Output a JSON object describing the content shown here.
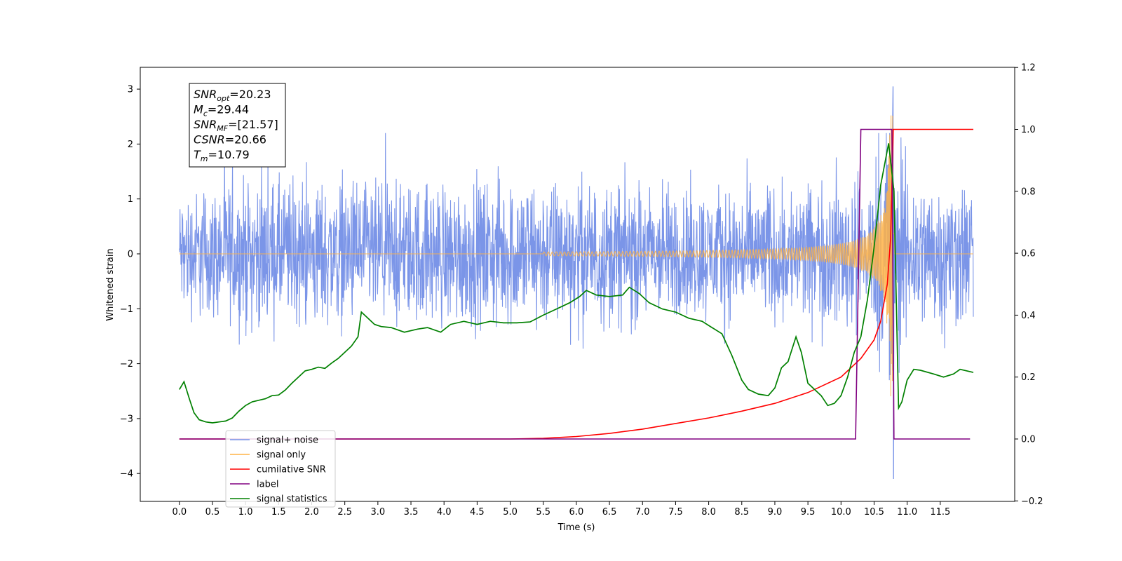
{
  "chart_data": {
    "type": "line",
    "xlabel": "Time (s)",
    "ylabel": "Whitened strain",
    "xlim": [
      -0.5,
      12.4
    ],
    "ylim": [
      -4.45,
      3.4
    ],
    "ylim_right": [
      -0.2,
      1.2
    ],
    "x_ticks": [
      "0.0",
      "0.5",
      "1.0",
      "1.5",
      "2.0",
      "2.5",
      "3.0",
      "3.5",
      "4.0",
      "4.5",
      "5.0",
      "5.5",
      "6.0",
      "6.5",
      "7.0",
      "7.5",
      "8.0",
      "8.5",
      "9.0",
      "9.5",
      "10.0",
      "10.5",
      "11.0",
      "11.5"
    ],
    "y_ticks_left": [
      "3",
      "2",
      "1",
      "0",
      "−1",
      "−2",
      "−3",
      "−4"
    ],
    "y_ticks_right": [
      "1.2",
      "1.0",
      "0.8",
      "0.6",
      "0.4",
      "0.2",
      "0.0",
      "−0.2"
    ],
    "legend_position": "lower-left",
    "annotation": {
      "lines": [
        {
          "var": "SNR",
          "sub": "opt",
          "value": "=20.23"
        },
        {
          "var": "M",
          "sub": "c",
          "value": "=29.44"
        },
        {
          "var": "SNR",
          "sub": "MF",
          "value": "=[21.57]"
        },
        {
          "var": "CSNR",
          "sub": "",
          "value": "=20.66"
        },
        {
          "var": "T",
          "sub": "m",
          "value": "=10.79"
        }
      ]
    },
    "series": [
      {
        "name": "signal+ noise",
        "color": "#7893e8",
        "axis": "left",
        "x_range": [
          0.0,
          12.0
        ],
        "envelope_points": [
          [
            0.0,
            1.0
          ],
          [
            0.6,
            1.1
          ],
          [
            1.0,
            1.2
          ],
          [
            2.0,
            1.2
          ],
          [
            3.0,
            1.15
          ],
          [
            5.5,
            1.25
          ],
          [
            8.0,
            1.1
          ],
          [
            9.5,
            1.15
          ],
          [
            10.5,
            1.3
          ],
          [
            10.8,
            3.05
          ],
          [
            11.0,
            1.3
          ],
          [
            12.0,
            1.2
          ]
        ],
        "peak_max": 3.05,
        "peak_min": -4.1,
        "peak_time": 10.79
      },
      {
        "name": "signal only",
        "color": "#ffb347",
        "axis": "left",
        "x_range": [
          0.0,
          12.0
        ],
        "chirp_start": 5.5,
        "merger_time": 10.79,
        "peak_amplitude": 2.65
      },
      {
        "name": "cumilative SNR",
        "color": "#ff0000",
        "axis": "right",
        "points": [
          [
            0.0,
            0.0
          ],
          [
            5.0,
            0.0
          ],
          [
            5.5,
            0.002
          ],
          [
            6.0,
            0.008
          ],
          [
            6.5,
            0.018
          ],
          [
            7.0,
            0.032
          ],
          [
            7.5,
            0.05
          ],
          [
            8.0,
            0.068
          ],
          [
            8.5,
            0.09
          ],
          [
            9.0,
            0.115
          ],
          [
            9.5,
            0.15
          ],
          [
            10.0,
            0.2
          ],
          [
            10.3,
            0.26
          ],
          [
            10.5,
            0.32
          ],
          [
            10.6,
            0.38
          ],
          [
            10.7,
            0.5
          ],
          [
            10.75,
            0.65
          ],
          [
            10.79,
            1.0
          ],
          [
            11.0,
            1.0
          ],
          [
            12.0,
            1.0
          ]
        ]
      },
      {
        "name": "label",
        "color": "#800080",
        "axis": "right",
        "points": [
          [
            0.0,
            0.0
          ],
          [
            10.22,
            0.0
          ],
          [
            10.3,
            1.0
          ],
          [
            10.77,
            1.0
          ],
          [
            10.8,
            0.0
          ],
          [
            11.95,
            0.0
          ]
        ]
      },
      {
        "name": "signal statistics",
        "color": "#008000",
        "axis": "right",
        "points": [
          [
            0.0,
            0.16
          ],
          [
            0.07,
            0.185
          ],
          [
            0.15,
            0.13
          ],
          [
            0.22,
            0.085
          ],
          [
            0.3,
            0.062
          ],
          [
            0.4,
            0.055
          ],
          [
            0.5,
            0.052
          ],
          [
            0.6,
            0.055
          ],
          [
            0.7,
            0.058
          ],
          [
            0.8,
            0.068
          ],
          [
            0.9,
            0.09
          ],
          [
            1.0,
            0.108
          ],
          [
            1.1,
            0.12
          ],
          [
            1.2,
            0.125
          ],
          [
            1.3,
            0.13
          ],
          [
            1.4,
            0.14
          ],
          [
            1.5,
            0.142
          ],
          [
            1.6,
            0.158
          ],
          [
            1.7,
            0.18
          ],
          [
            1.8,
            0.2
          ],
          [
            1.9,
            0.22
          ],
          [
            2.0,
            0.225
          ],
          [
            2.1,
            0.232
          ],
          [
            2.2,
            0.228
          ],
          [
            2.3,
            0.245
          ],
          [
            2.4,
            0.26
          ],
          [
            2.5,
            0.28
          ],
          [
            2.6,
            0.3
          ],
          [
            2.7,
            0.33
          ],
          [
            2.75,
            0.41
          ],
          [
            2.85,
            0.39
          ],
          [
            2.95,
            0.37
          ],
          [
            3.05,
            0.363
          ],
          [
            3.2,
            0.36
          ],
          [
            3.4,
            0.345
          ],
          [
            3.6,
            0.355
          ],
          [
            3.75,
            0.36
          ],
          [
            3.95,
            0.345
          ],
          [
            4.1,
            0.37
          ],
          [
            4.3,
            0.38
          ],
          [
            4.5,
            0.37
          ],
          [
            4.7,
            0.38
          ],
          [
            4.9,
            0.375
          ],
          [
            5.1,
            0.375
          ],
          [
            5.3,
            0.378
          ],
          [
            5.5,
            0.4
          ],
          [
            5.7,
            0.42
          ],
          [
            5.9,
            0.44
          ],
          [
            6.05,
            0.46
          ],
          [
            6.15,
            0.48
          ],
          [
            6.3,
            0.465
          ],
          [
            6.5,
            0.46
          ],
          [
            6.7,
            0.465
          ],
          [
            6.8,
            0.49
          ],
          [
            6.95,
            0.47
          ],
          [
            7.1,
            0.44
          ],
          [
            7.3,
            0.42
          ],
          [
            7.5,
            0.41
          ],
          [
            7.7,
            0.39
          ],
          [
            7.9,
            0.38
          ],
          [
            8.05,
            0.36
          ],
          [
            8.2,
            0.34
          ],
          [
            8.35,
            0.27
          ],
          [
            8.5,
            0.19
          ],
          [
            8.6,
            0.16
          ],
          [
            8.75,
            0.145
          ],
          [
            8.9,
            0.14
          ],
          [
            9.0,
            0.165
          ],
          [
            9.1,
            0.23
          ],
          [
            9.2,
            0.25
          ],
          [
            9.32,
            0.33
          ],
          [
            9.4,
            0.28
          ],
          [
            9.5,
            0.18
          ],
          [
            9.6,
            0.16
          ],
          [
            9.7,
            0.14
          ],
          [
            9.8,
            0.108
          ],
          [
            9.9,
            0.115
          ],
          [
            10.0,
            0.14
          ],
          [
            10.1,
            0.2
          ],
          [
            10.2,
            0.28
          ],
          [
            10.3,
            0.33
          ],
          [
            10.4,
            0.45
          ],
          [
            10.5,
            0.62
          ],
          [
            10.6,
            0.82
          ],
          [
            10.72,
            0.955
          ],
          [
            10.8,
            0.8
          ],
          [
            10.87,
            0.1
          ],
          [
            10.92,
            0.12
          ],
          [
            11.0,
            0.19
          ],
          [
            11.1,
            0.225
          ],
          [
            11.2,
            0.222
          ],
          [
            11.4,
            0.21
          ],
          [
            11.55,
            0.2
          ],
          [
            11.7,
            0.21
          ],
          [
            11.8,
            0.225
          ],
          [
            12.0,
            0.215
          ]
        ]
      }
    ]
  }
}
